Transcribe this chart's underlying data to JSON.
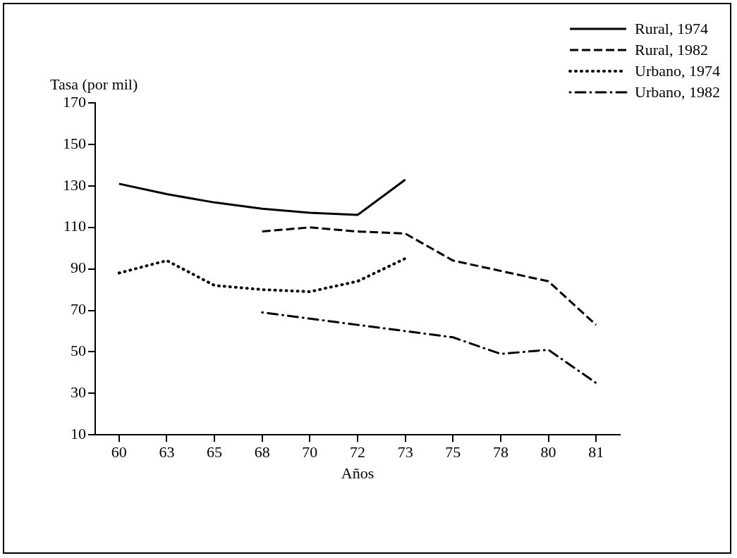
{
  "chart_data": {
    "type": "line",
    "xlabel": "Años",
    "ylabel": "Tasa (por mil)",
    "categories": [
      "60",
      "63",
      "65",
      "68",
      "70",
      "72",
      "73",
      "75",
      "78",
      "80",
      "81"
    ],
    "ylim": [
      10,
      170
    ],
    "yticks": [
      10,
      30,
      50,
      70,
      90,
      110,
      130,
      150,
      170
    ],
    "grid": false,
    "legend": "top right",
    "marker": "none",
    "series": [
      {
        "name": "Rural, 1974",
        "color": "#000000",
        "line_style": "solid",
        "values": [
          131,
          126,
          122,
          119,
          117,
          116,
          133,
          null,
          null,
          null,
          null
        ]
      },
      {
        "name": "Rural, 1982",
        "color": "#000000",
        "line_style": "dashed",
        "values": [
          null,
          null,
          null,
          108,
          110,
          108,
          107,
          94,
          89,
          84,
          63
        ]
      },
      {
        "name": "Urbano, 1974",
        "color": "#000000",
        "line_style": "dotted",
        "values": [
          88,
          94,
          82,
          80,
          79,
          84,
          95,
          null,
          null,
          null,
          null
        ]
      },
      {
        "name": "Urbano, 1982",
        "color": "#000000",
        "line_style": "dashdot",
        "values": [
          null,
          null,
          null,
          69,
          66,
          63,
          60,
          57,
          49,
          51,
          35
        ]
      }
    ]
  }
}
